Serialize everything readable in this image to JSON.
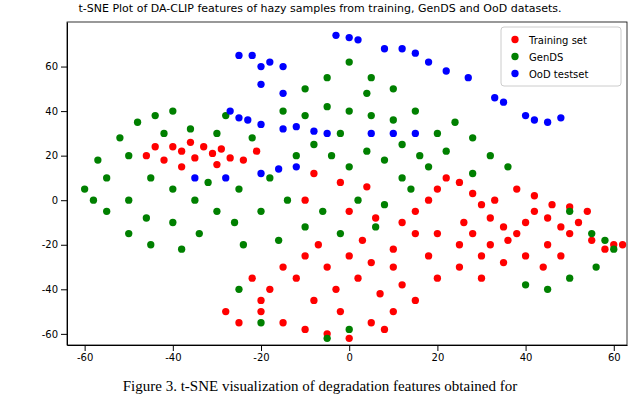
{
  "chart_data": {
    "type": "scatter",
    "title": "t-SNE Plot of DA-CLIP features of hazy samples from training, GenDS and OoD datasets.",
    "caption": "Figure 3. t-SNE visualization of degradation features obtained for",
    "xlim": [
      -64,
      63
    ],
    "ylim": [
      -65,
      80
    ],
    "xticks": [
      -60,
      -40,
      -20,
      0,
      20,
      40,
      60
    ],
    "yticks": [
      -60,
      -40,
      -20,
      0,
      20,
      40,
      60
    ],
    "legend": "upper right",
    "marker": "circle",
    "series": [
      {
        "name": "Training set",
        "color": "#ff0000",
        "x": [
          -46,
          -42,
          -40,
          -38,
          -36,
          -35,
          -33,
          -31,
          -29,
          -27,
          -30,
          -24,
          -21,
          -38,
          -44,
          -8,
          -2,
          4,
          -10,
          0,
          6,
          -25,
          -20,
          -15,
          -10,
          -5,
          0,
          5,
          10,
          -18,
          -12,
          -8,
          -3,
          2,
          7,
          12,
          -5,
          0,
          5,
          -10,
          -15,
          -20,
          -2,
          8,
          15,
          -28,
          -7,
          3,
          10,
          -22,
          12,
          15,
          18,
          20,
          22,
          25,
          28,
          30,
          32,
          35,
          38,
          40,
          42,
          45,
          48,
          50,
          52,
          55,
          58,
          60,
          62,
          45,
          40,
          35,
          30,
          25,
          20,
          18,
          28,
          33,
          38,
          42,
          46,
          50,
          54,
          25,
          30,
          20,
          15,
          10,
          44,
          48,
          36,
          32,
          26
        ],
        "values": [
          20,
          18,
          24,
          22,
          26,
          19,
          24,
          21,
          23,
          19,
          16,
          18,
          22,
          15,
          24,
          12,
          8,
          6,
          0,
          -5,
          -8,
          -55,
          -50,
          -55,
          -58,
          -60,
          -62,
          -55,
          -50,
          -40,
          -35,
          -45,
          -40,
          -35,
          -42,
          -38,
          -30,
          -25,
          -28,
          -25,
          -30,
          -45,
          -50,
          -58,
          -45,
          -50,
          -20,
          -18,
          -22,
          -35,
          -10,
          -5,
          0,
          5,
          10,
          8,
          3,
          -2,
          -8,
          -12,
          -15,
          -10,
          -5,
          -8,
          -12,
          -15,
          -10,
          -18,
          -22,
          -20,
          -20,
          -20,
          -25,
          -28,
          -25,
          -20,
          -15,
          -25,
          -15,
          0,
          5,
          2,
          -2,
          -3,
          -5,
          -30,
          -35,
          -35,
          -15,
          -30,
          -30,
          -25,
          -18,
          -20,
          -10
        ]
      },
      {
        "name": "GenDS",
        "color": "#008000",
        "x": [
          -60,
          -58,
          -55,
          -55,
          -50,
          -50,
          -50,
          -48,
          -45,
          -45,
          -44,
          -40,
          -40,
          -40,
          -38,
          -36,
          -35,
          -34,
          -32,
          -30,
          -30,
          -28,
          -26,
          -25,
          -24,
          -22,
          -20,
          -18,
          -52,
          -57,
          -46,
          -42,
          -15,
          -10,
          -5,
          0,
          5,
          10,
          15,
          -12,
          -8,
          -4,
          0,
          4,
          8,
          12,
          16,
          20,
          24,
          -14,
          -6,
          2,
          8,
          -10,
          -2,
          6,
          -16,
          14,
          18,
          22,
          28,
          32,
          36,
          28,
          10,
          5,
          -5,
          0,
          4,
          -10,
          -2,
          12,
          55,
          58,
          60,
          56,
          50,
          45,
          40,
          50,
          0,
          -5,
          -25,
          -20
        ],
        "values": [
          5,
          0,
          10,
          -5,
          20,
          0,
          -15,
          35,
          10,
          -20,
          38,
          40,
          5,
          -10,
          -22,
          32,
          0,
          -15,
          8,
          -5,
          30,
          38,
          -10,
          5,
          -20,
          28,
          -5,
          10,
          28,
          18,
          -8,
          30,
          40,
          38,
          42,
          40,
          38,
          36,
          40,
          20,
          25,
          20,
          15,
          22,
          18,
          25,
          20,
          30,
          35,
          0,
          -5,
          0,
          -2,
          -12,
          -15,
          -12,
          -18,
          5,
          15,
          22,
          28,
          20,
          15,
          12,
          50,
          55,
          55,
          62,
          48,
          50,
          30,
          10,
          -15,
          -18,
          -22,
          -30,
          -35,
          -40,
          -38,
          -5,
          -58,
          -62,
          -40,
          -55
        ]
      },
      {
        "name": "OoD testset",
        "color": "#0000ff",
        "x": [
          -22,
          -20,
          -18,
          -25,
          -15,
          -3,
          0,
          2,
          8,
          12,
          15,
          18,
          22,
          27,
          33,
          35,
          42,
          45,
          48,
          40,
          -23,
          -20,
          -15,
          -12,
          -8,
          -5,
          5,
          10,
          15,
          -12,
          -16,
          -20,
          -28,
          -35,
          -20,
          -15,
          -27,
          -25
        ],
        "values": [
          65,
          60,
          62,
          65,
          60,
          74,
          73,
          72,
          68,
          68,
          66,
          62,
          58,
          55,
          46,
          44,
          36,
          35,
          37,
          38,
          36,
          34,
          32,
          33,
          31,
          30,
          30,
          30,
          30,
          15,
          14,
          12,
          10,
          10,
          52,
          48,
          40,
          37
        ]
      }
    ]
  }
}
